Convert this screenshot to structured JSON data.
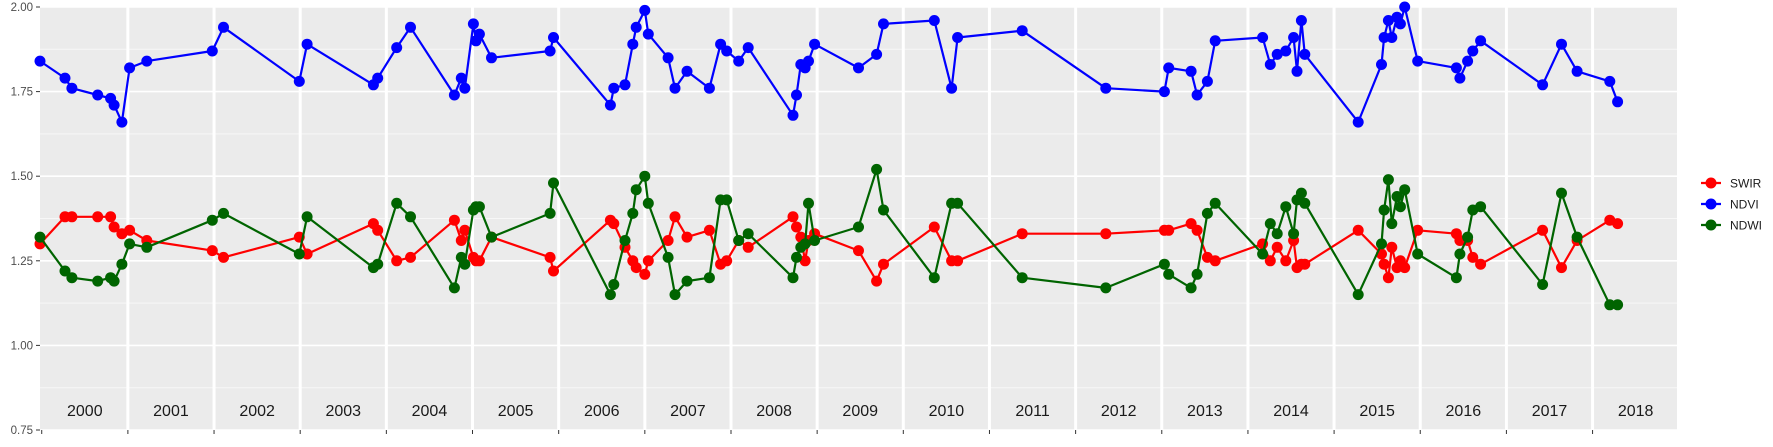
{
  "chart_data": {
    "type": "line",
    "title": "",
    "xlabel": "",
    "ylabel": "",
    "ylim": [
      0.75,
      2.0
    ],
    "xlim": [
      1999.98,
      2018.98
    ],
    "y_ticks": [
      0.75,
      1.0,
      1.25,
      1.5,
      1.75,
      2.0
    ],
    "y_tick_labels": [
      "0.75",
      "1.00",
      "1.25",
      "1.50",
      "1.75",
      "2.00"
    ],
    "year_labels": [
      "2000",
      "2001",
      "2002",
      "2003",
      "2004",
      "2005",
      "2006",
      "2007",
      "2008",
      "2009",
      "2010",
      "2011",
      "2012",
      "2013",
      "2014",
      "2015",
      "2016",
      "2017",
      "2018"
    ],
    "background_color": "#EBEBEB",
    "grid": true,
    "legend_position": "right",
    "series": [
      {
        "name": "NDVI",
        "color": "#0000FF",
        "x": [
          1999.98,
          2000.27,
          2000.35,
          2000.65,
          2000.8,
          2000.84,
          2000.93,
          2001.02,
          2001.22,
          2001.98,
          2002.11,
          2002.99,
          2003.08,
          2003.85,
          2003.9,
          2004.12,
          2004.28,
          2004.79,
          2004.87,
          2004.91,
          2005.01,
          2005.04,
          2005.08,
          2005.22,
          2005.9,
          2005.94,
          2006.6,
          2006.64,
          2006.77,
          2006.86,
          2006.9,
          2007.0,
          2007.04,
          2007.27,
          2007.35,
          2007.49,
          2007.75,
          2007.88,
          2007.95,
          2008.09,
          2008.2,
          2008.72,
          2008.76,
          2008.81,
          2008.86,
          2008.9,
          2008.97,
          2009.48,
          2009.69,
          2009.77,
          2010.36,
          2010.56,
          2010.63,
          2011.38,
          2012.35,
          2013.03,
          2013.08,
          2013.34,
          2013.41,
          2013.53,
          2013.62,
          2014.17,
          2014.26,
          2014.34,
          2014.44,
          2014.53,
          2014.57,
          2014.62,
          2014.66,
          2015.28,
          2015.55,
          2015.58,
          2015.63,
          2015.67,
          2015.73,
          2015.77,
          2015.82,
          2015.97,
          2016.42,
          2016.46,
          2016.55,
          2016.61,
          2016.7,
          2017.42,
          2017.64,
          2017.82,
          2018.2,
          2018.29
        ],
        "y": [
          1.84,
          1.79,
          1.76,
          1.74,
          1.73,
          1.71,
          1.66,
          1.82,
          1.84,
          1.87,
          1.94,
          1.78,
          1.89,
          1.77,
          1.79,
          1.88,
          1.94,
          1.74,
          1.79,
          1.76,
          1.95,
          1.9,
          1.92,
          1.85,
          1.87,
          1.91,
          1.71,
          1.76,
          1.77,
          1.89,
          1.94,
          1.99,
          1.92,
          1.85,
          1.76,
          1.81,
          1.76,
          1.89,
          1.87,
          1.84,
          1.88,
          1.68,
          1.74,
          1.83,
          1.82,
          1.84,
          1.89,
          1.82,
          1.86,
          1.95,
          1.96,
          1.76,
          1.91,
          1.93,
          1.76,
          1.75,
          1.82,
          1.81,
          1.74,
          1.78,
          1.9,
          1.91,
          1.83,
          1.86,
          1.87,
          1.91,
          1.81,
          1.96,
          1.86,
          1.66,
          1.83,
          1.91,
          1.96,
          1.91,
          1.97,
          1.95,
          2.0,
          1.84,
          1.82,
          1.79,
          1.84,
          1.87,
          1.9,
          1.77,
          1.89,
          1.81,
          1.78,
          1.72
        ]
      },
      {
        "name": "SWIR",
        "color": "#FF0000",
        "x": [
          1999.98,
          2000.27,
          2000.35,
          2000.65,
          2000.8,
          2000.84,
          2000.93,
          2001.02,
          2001.22,
          2001.98,
          2002.11,
          2002.99,
          2003.08,
          2003.85,
          2003.9,
          2004.12,
          2004.28,
          2004.79,
          2004.87,
          2004.91,
          2005.01,
          2005.04,
          2005.08,
          2005.22,
          2005.9,
          2005.94,
          2006.6,
          2006.64,
          2006.77,
          2006.86,
          2006.9,
          2007.0,
          2007.04,
          2007.27,
          2007.35,
          2007.49,
          2007.75,
          2007.88,
          2007.95,
          2008.09,
          2008.2,
          2008.72,
          2008.76,
          2008.81,
          2008.86,
          2008.9,
          2008.97,
          2009.48,
          2009.69,
          2009.77,
          2010.36,
          2010.56,
          2010.63,
          2011.38,
          2012.35,
          2013.03,
          2013.08,
          2013.34,
          2013.41,
          2013.53,
          2013.62,
          2014.17,
          2014.26,
          2014.34,
          2014.44,
          2014.53,
          2014.57,
          2014.62,
          2014.66,
          2015.28,
          2015.55,
          2015.58,
          2015.63,
          2015.67,
          2015.73,
          2015.77,
          2015.82,
          2015.97,
          2016.42,
          2016.46,
          2016.55,
          2016.61,
          2016.7,
          2017.42,
          2017.64,
          2017.82,
          2018.2,
          2018.29
        ],
        "y": [
          1.3,
          1.38,
          1.38,
          1.38,
          1.38,
          1.35,
          1.33,
          1.34,
          1.31,
          1.28,
          1.26,
          1.32,
          1.27,
          1.36,
          1.34,
          1.25,
          1.26,
          1.37,
          1.31,
          1.34,
          1.26,
          1.25,
          1.25,
          1.32,
          1.26,
          1.22,
          1.37,
          1.36,
          1.29,
          1.25,
          1.23,
          1.21,
          1.25,
          1.31,
          1.38,
          1.32,
          1.34,
          1.24,
          1.25,
          1.31,
          1.29,
          1.38,
          1.35,
          1.32,
          1.25,
          1.31,
          1.33,
          1.28,
          1.19,
          1.24,
          1.35,
          1.25,
          1.25,
          1.33,
          1.33,
          1.34,
          1.34,
          1.36,
          1.34,
          1.26,
          1.25,
          1.3,
          1.25,
          1.29,
          1.25,
          1.31,
          1.23,
          1.24,
          1.24,
          1.34,
          1.27,
          1.24,
          1.2,
          1.29,
          1.23,
          1.25,
          1.23,
          1.34,
          1.33,
          1.31,
          1.31,
          1.26,
          1.24,
          1.34,
          1.23,
          1.31,
          1.37,
          1.36
        ]
      },
      {
        "name": "NDWI",
        "color": "#006400",
        "x": [
          1999.98,
          2000.27,
          2000.35,
          2000.65,
          2000.8,
          2000.84,
          2000.93,
          2001.02,
          2001.22,
          2001.98,
          2002.11,
          2002.99,
          2003.08,
          2003.85,
          2003.9,
          2004.12,
          2004.28,
          2004.79,
          2004.87,
          2004.91,
          2005.01,
          2005.04,
          2005.08,
          2005.22,
          2005.9,
          2005.94,
          2006.6,
          2006.64,
          2006.77,
          2006.86,
          2006.9,
          2007.0,
          2007.04,
          2007.27,
          2007.35,
          2007.49,
          2007.75,
          2007.88,
          2007.95,
          2008.09,
          2008.2,
          2008.72,
          2008.76,
          2008.81,
          2008.86,
          2008.9,
          2008.97,
          2009.48,
          2009.69,
          2009.77,
          2010.36,
          2010.56,
          2010.63,
          2011.38,
          2012.35,
          2013.03,
          2013.08,
          2013.34,
          2013.41,
          2013.53,
          2013.62,
          2014.17,
          2014.26,
          2014.34,
          2014.44,
          2014.53,
          2014.57,
          2014.62,
          2014.66,
          2015.28,
          2015.55,
          2015.58,
          2015.63,
          2015.67,
          2015.73,
          2015.77,
          2015.82,
          2015.97,
          2016.42,
          2016.46,
          2016.55,
          2016.61,
          2016.7,
          2017.42,
          2017.64,
          2017.82,
          2018.2,
          2018.29
        ],
        "y": [
          1.32,
          1.22,
          1.2,
          1.19,
          1.2,
          1.19,
          1.24,
          1.3,
          1.29,
          1.37,
          1.39,
          1.27,
          1.38,
          1.23,
          1.24,
          1.42,
          1.38,
          1.17,
          1.26,
          1.24,
          1.4,
          1.41,
          1.41,
          1.32,
          1.39,
          1.48,
          1.15,
          1.18,
          1.31,
          1.39,
          1.46,
          1.5,
          1.42,
          1.26,
          1.15,
          1.19,
          1.2,
          1.43,
          1.43,
          1.31,
          1.33,
          1.2,
          1.26,
          1.29,
          1.3,
          1.42,
          1.31,
          1.35,
          1.52,
          1.4,
          1.2,
          1.42,
          1.42,
          1.2,
          1.17,
          1.24,
          1.21,
          1.17,
          1.21,
          1.39,
          1.42,
          1.27,
          1.36,
          1.33,
          1.41,
          1.33,
          1.43,
          1.45,
          1.42,
          1.15,
          1.3,
          1.4,
          1.49,
          1.36,
          1.44,
          1.41,
          1.46,
          1.27,
          1.2,
          1.27,
          1.32,
          1.4,
          1.41,
          1.18,
          1.45,
          1.32,
          1.12,
          1.12
        ]
      }
    ],
    "legend": [
      {
        "name": "SWIR",
        "color": "#FF0000"
      },
      {
        "name": "NDVI",
        "color": "#0000FF"
      },
      {
        "name": "NDWI",
        "color": "#006400"
      }
    ]
  }
}
